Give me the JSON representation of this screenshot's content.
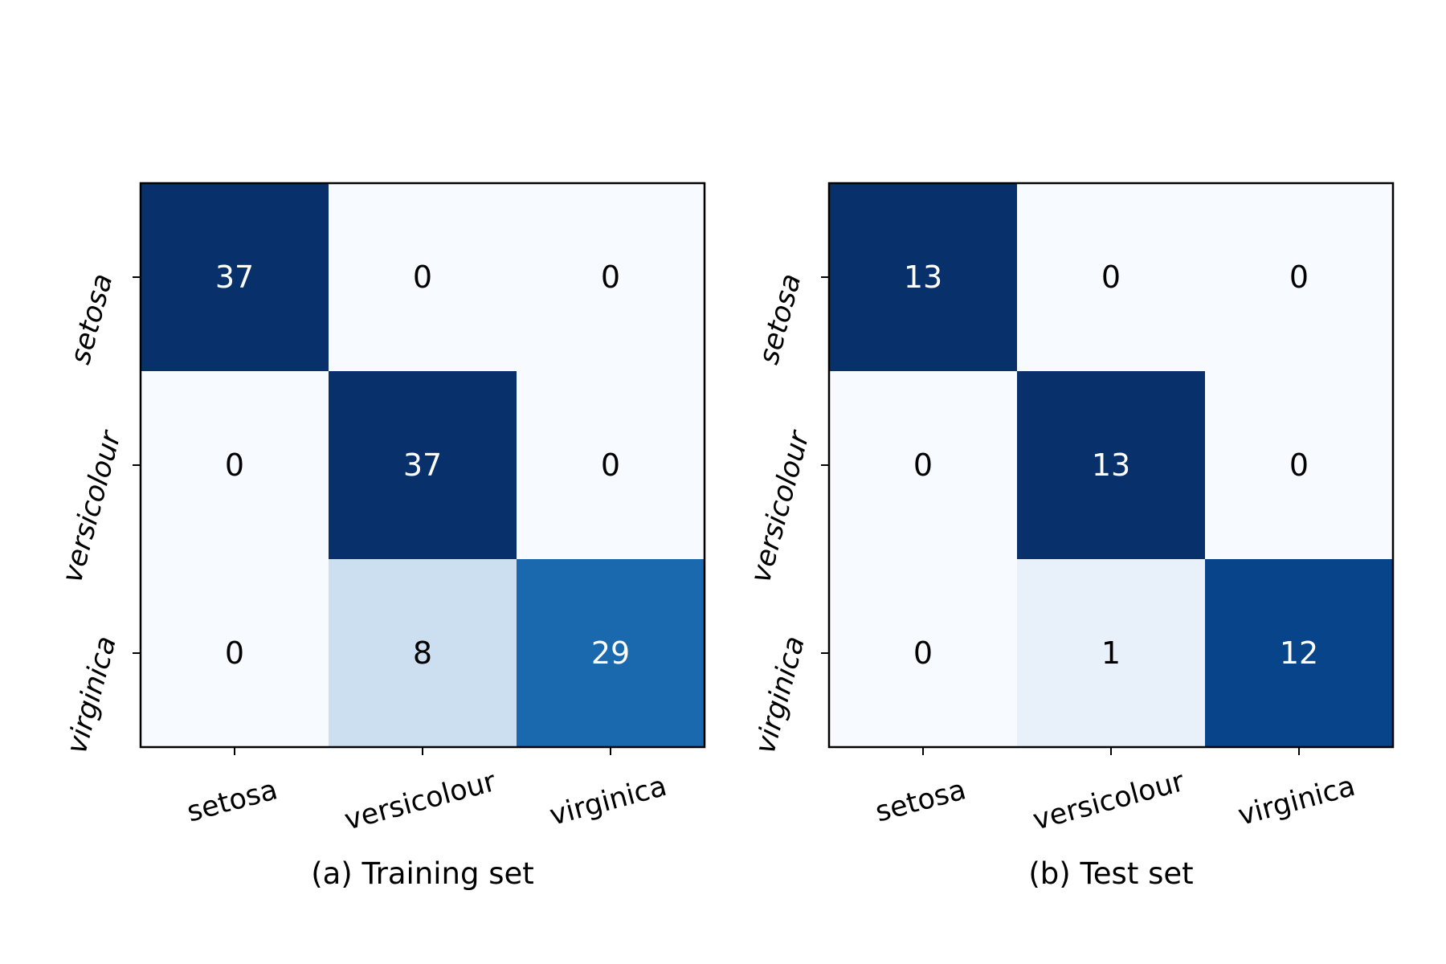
{
  "chart_data": [
    {
      "type": "heatmap",
      "caption": "(a) Training set",
      "x_categories": [
        "setosa",
        "versicolour",
        "virginica"
      ],
      "y_categories": [
        "setosa",
        "versicolour",
        "virginica"
      ],
      "values": [
        [
          37,
          0,
          0
        ],
        [
          0,
          37,
          0
        ],
        [
          0,
          8,
          29
        ]
      ],
      "colormap": "Blues",
      "vmin": 0,
      "vmax": 37,
      "grid": false
    },
    {
      "type": "heatmap",
      "caption": "(b) Test set",
      "x_categories": [
        "setosa",
        "versicolour",
        "virginica"
      ],
      "y_categories": [
        "setosa",
        "versicolour",
        "virginica"
      ],
      "values": [
        [
          13,
          0,
          0
        ],
        [
          0,
          13,
          0
        ],
        [
          0,
          1,
          12
        ]
      ],
      "colormap": "Blues",
      "vmin": 0,
      "vmax": 13,
      "grid": false
    }
  ],
  "colors": {
    "colormap_low": "#f7fbff",
    "colormap_high": "#08306b",
    "text_dark": "#000000",
    "text_light": "#ffffff",
    "frame": "#000000"
  }
}
